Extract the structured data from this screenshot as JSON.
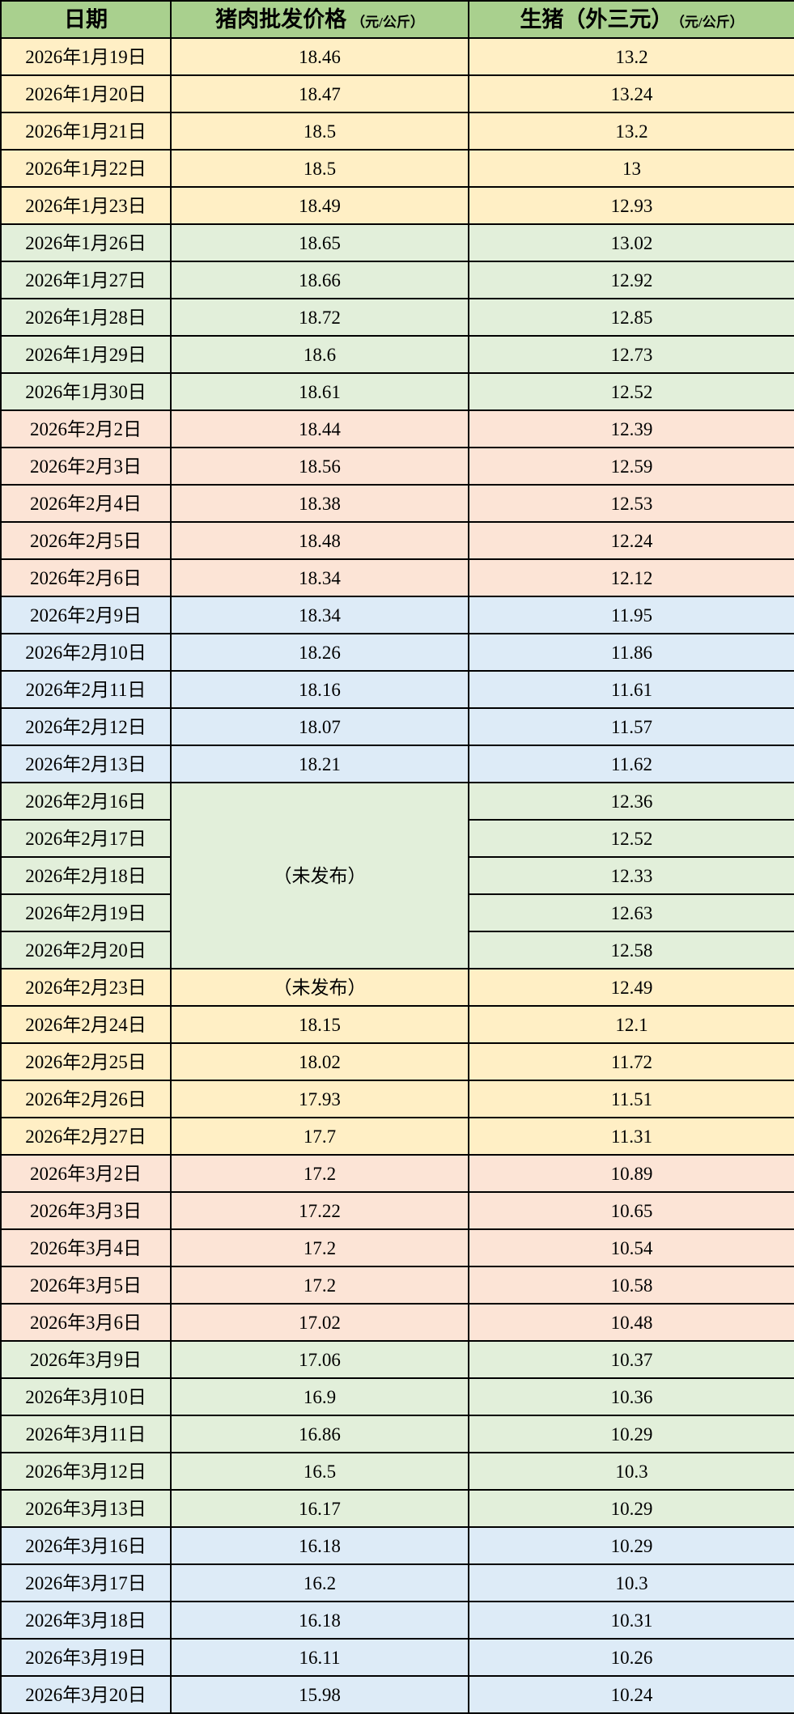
{
  "colors": {
    "header-bg": "#A9D08E",
    "row-yellow": "#FFEFC5",
    "row-green": "#E2EFDA",
    "row-pink": "#FCE4D6",
    "row-blue": "#DDEBF7",
    "border": "#000000",
    "text": "#000000"
  },
  "table": {
    "columns": [
      {
        "label": "日期",
        "unit": ""
      },
      {
        "label": "猪肉批发价格",
        "unit": "（元/公斤）"
      },
      {
        "label": "生猪（外三元）",
        "unit": "（元/公斤）"
      }
    ],
    "unpublished_label": "（未发布）",
    "rows": [
      {
        "date": "2026年1月19日",
        "pork": "18.46",
        "pig": "13.2",
        "theme": "yellow"
      },
      {
        "date": "2026年1月20日",
        "pork": "18.47",
        "pig": "13.24",
        "theme": "yellow"
      },
      {
        "date": "2026年1月21日",
        "pork": "18.5",
        "pig": "13.2",
        "theme": "yellow"
      },
      {
        "date": "2026年1月22日",
        "pork": "18.5",
        "pig": "13",
        "theme": "yellow"
      },
      {
        "date": "2026年1月23日",
        "pork": "18.49",
        "pig": "12.93",
        "theme": "yellow"
      },
      {
        "date": "2026年1月26日",
        "pork": "18.65",
        "pig": "13.02",
        "theme": "green"
      },
      {
        "date": "2026年1月27日",
        "pork": "18.66",
        "pig": "12.92",
        "theme": "green"
      },
      {
        "date": "2026年1月28日",
        "pork": "18.72",
        "pig": "12.85",
        "theme": "green"
      },
      {
        "date": "2026年1月29日",
        "pork": "18.6",
        "pig": "12.73",
        "theme": "green"
      },
      {
        "date": "2026年1月30日",
        "pork": "18.61",
        "pig": "12.52",
        "theme": "green"
      },
      {
        "date": "2026年2月2日",
        "pork": "18.44",
        "pig": "12.39",
        "theme": "pink"
      },
      {
        "date": "2026年2月3日",
        "pork": "18.56",
        "pig": "12.59",
        "theme": "pink"
      },
      {
        "date": "2026年2月4日",
        "pork": "18.38",
        "pig": "12.53",
        "theme": "pink"
      },
      {
        "date": "2026年2月5日",
        "pork": "18.48",
        "pig": "12.24",
        "theme": "pink"
      },
      {
        "date": "2026年2月6日",
        "pork": "18.34",
        "pig": "12.12",
        "theme": "pink"
      },
      {
        "date": "2026年2月9日",
        "pork": "18.34",
        "pig": "11.95",
        "theme": "blue"
      },
      {
        "date": "2026年2月10日",
        "pork": "18.26",
        "pig": "11.86",
        "theme": "blue"
      },
      {
        "date": "2026年2月11日",
        "pork": "18.16",
        "pig": "11.61",
        "theme": "blue"
      },
      {
        "date": "2026年2月12日",
        "pork": "18.07",
        "pig": "11.57",
        "theme": "blue"
      },
      {
        "date": "2026年2月13日",
        "pork": "18.21",
        "pig": "11.62",
        "theme": "blue"
      },
      {
        "date": "2026年2月16日",
        "pork": "（未发布）",
        "pork_rowspan": 5,
        "pig": "12.36",
        "theme": "green"
      },
      {
        "date": "2026年2月17日",
        "pork": null,
        "pig": "12.52",
        "theme": "green"
      },
      {
        "date": "2026年2月18日",
        "pork": null,
        "pig": "12.33",
        "theme": "green"
      },
      {
        "date": "2026年2月19日",
        "pork": null,
        "pig": "12.63",
        "theme": "green"
      },
      {
        "date": "2026年2月20日",
        "pork": null,
        "pig": "12.58",
        "theme": "green"
      },
      {
        "date": "2026年2月23日",
        "pork": "（未发布）",
        "pig": "12.49",
        "theme": "yellow"
      },
      {
        "date": "2026年2月24日",
        "pork": "18.15",
        "pig": "12.1",
        "theme": "yellow"
      },
      {
        "date": "2026年2月25日",
        "pork": "18.02",
        "pig": "11.72",
        "theme": "yellow"
      },
      {
        "date": "2026年2月26日",
        "pork": "17.93",
        "pig": "11.51",
        "theme": "yellow"
      },
      {
        "date": "2026年2月27日",
        "pork": "17.7",
        "pig": "11.31",
        "theme": "yellow"
      },
      {
        "date": "2026年3月2日",
        "pork": "17.2",
        "pig": "10.89",
        "theme": "pink"
      },
      {
        "date": "2026年3月3日",
        "pork": "17.22",
        "pig": "10.65",
        "theme": "pink"
      },
      {
        "date": "2026年3月4日",
        "pork": "17.2",
        "pig": "10.54",
        "theme": "pink"
      },
      {
        "date": "2026年3月5日",
        "pork": "17.2",
        "pig": "10.58",
        "theme": "pink"
      },
      {
        "date": "2026年3月6日",
        "pork": "17.02",
        "pig": "10.48",
        "theme": "pink"
      },
      {
        "date": "2026年3月9日",
        "pork": "17.06",
        "pig": "10.37",
        "theme": "green"
      },
      {
        "date": "2026年3月10日",
        "pork": "16.9",
        "pig": "10.36",
        "theme": "green"
      },
      {
        "date": "2026年3月11日",
        "pork": "16.86",
        "pig": "10.29",
        "theme": "green"
      },
      {
        "date": "2026年3月12日",
        "pork": "16.5",
        "pig": "10.3",
        "theme": "green"
      },
      {
        "date": "2026年3月13日",
        "pork": "16.17",
        "pig": "10.29",
        "theme": "green"
      },
      {
        "date": "2026年3月16日",
        "pork": "16.18",
        "pig": "10.29",
        "theme": "blue"
      },
      {
        "date": "2026年3月17日",
        "pork": "16.2",
        "pig": "10.3",
        "theme": "blue"
      },
      {
        "date": "2026年3月18日",
        "pork": "16.18",
        "pig": "10.31",
        "theme": "blue"
      },
      {
        "date": "2026年3月19日",
        "pork": "16.11",
        "pig": "10.26",
        "theme": "blue"
      },
      {
        "date": "2026年3月20日",
        "pork": "15.98",
        "pig": "10.24",
        "theme": "blue"
      }
    ]
  }
}
